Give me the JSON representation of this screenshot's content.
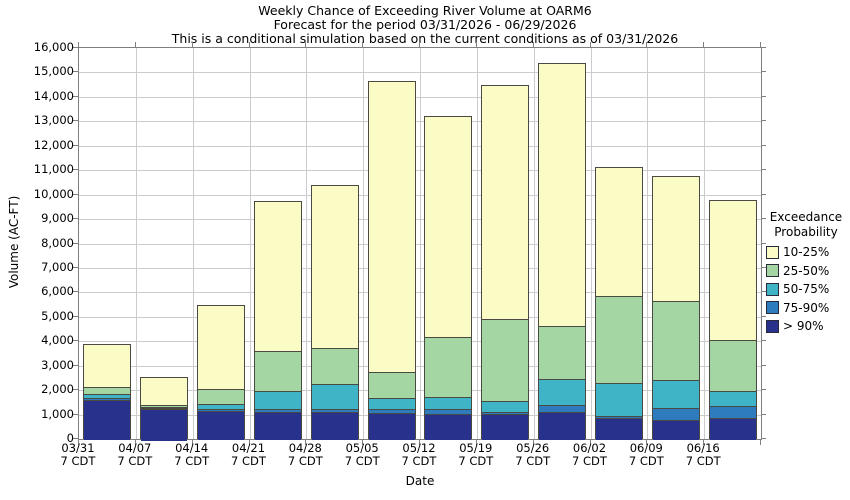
{
  "title": {
    "line1": "Weekly Chance of Exceeding River Volume at OARM6",
    "line2": "Forecast for the period 03/31/2026 - 06/29/2026",
    "line3": "This is a conditional simulation based on the current conditions as of 03/31/2026"
  },
  "y_axis": {
    "label": "Volume (AC-FT)",
    "min": 0,
    "max": 16000,
    "step": 1000
  },
  "x_axis": {
    "label": "Date",
    "sub_label": "7 CDT"
  },
  "legend": {
    "title_lines": [
      "Exceedance",
      "Probability"
    ],
    "items": [
      {
        "label": "10-25%",
        "color": "#FBFBC6"
      },
      {
        "label": "25-50%",
        "color": "#A3D6A3"
      },
      {
        "label": "50-75%",
        "color": "#3FB4C6"
      },
      {
        "label": "75-90%",
        "color": "#2E7CBE"
      },
      {
        "label": "> 90%",
        "color": "#28318C"
      }
    ]
  },
  "chart_data": {
    "type": "bar",
    "stacked": true,
    "title": "Weekly Chance of Exceeding River Volume at OARM6",
    "xlabel": "Date",
    "ylabel": "Volume (AC-FT)",
    "ylim": [
      0,
      16000
    ],
    "grid": true,
    "legend_position": "right",
    "categories": [
      "03/31",
      "04/07",
      "04/14",
      "04/21",
      "04/28",
      "05/05",
      "05/12",
      "05/19",
      "05/26",
      "06/02",
      "06/09",
      "06/16"
    ],
    "category_time_suffix": "7 CDT",
    "series": [
      {
        "name": "> 90%",
        "color": "#28318C",
        "values": [
          1650,
          1300,
          1200,
          1150,
          1150,
          1100,
          1075,
          1050,
          1150,
          900,
          800,
          900
        ]
      },
      {
        "name": "75-90%",
        "color": "#2E7CBE",
        "values": [
          75,
          30,
          80,
          100,
          130,
          180,
          205,
          100,
          300,
          75,
          500,
          500
        ]
      },
      {
        "name": "50-75%",
        "color": "#3FB4C6",
        "values": [
          175,
          35,
          200,
          775,
          1020,
          420,
          470,
          450,
          1050,
          1375,
          1150,
          600
        ]
      },
      {
        "name": "25-50%",
        "color": "#A3D6A3",
        "values": [
          250,
          55,
          620,
          1625,
          1450,
          1100,
          2450,
          3350,
          2150,
          3550,
          3250,
          2100
        ]
      },
      {
        "name": "10-25%",
        "color": "#FBFBC6",
        "values": [
          1750,
          1130,
          3400,
          6100,
          6650,
          11850,
          9000,
          9550,
          10750,
          5250,
          5050,
          5700
        ]
      }
    ],
    "stack_totals": [
      3900,
      2550,
      5500,
      9750,
      10400,
      14650,
      13200,
      14500,
      15400,
      11150,
      10750,
      9800
    ]
  }
}
